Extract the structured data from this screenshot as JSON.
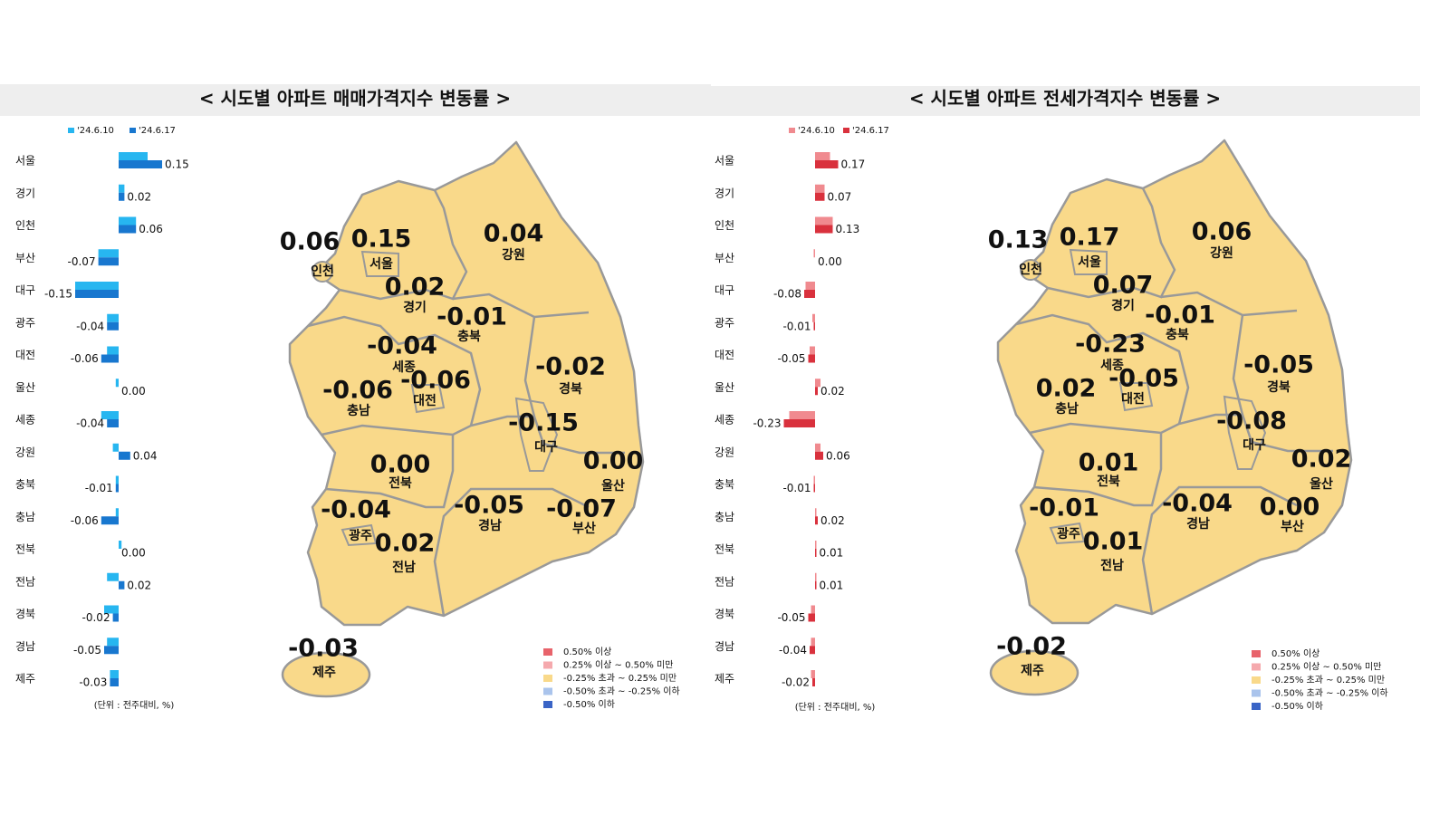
{
  "chart_data": [
    {
      "type": "hbar",
      "title": "< 시도별 아파트 매매가격지수 변동률 >",
      "note": "(단위 : 전주대비, %)",
      "categories": [
        "서울",
        "경기",
        "인천",
        "부산",
        "대구",
        "광주",
        "대전",
        "울산",
        "세종",
        "강원",
        "충북",
        "충남",
        "전북",
        "전남",
        "경북",
        "경남",
        "제주"
      ],
      "xlim": [
        -0.25,
        0.2
      ],
      "series": [
        {
          "name": "'24.6.10",
          "color": "#27b6f0",
          "values": [
            0.1,
            0.02,
            0.06,
            -0.07,
            -0.15,
            -0.04,
            -0.04,
            -0.01,
            -0.06,
            -0.02,
            -0.01,
            -0.01,
            0.01,
            -0.04,
            -0.05,
            -0.04,
            -0.03
          ]
        },
        {
          "name": "'24.6.17",
          "color": "#1877cf",
          "values": [
            0.15,
            0.02,
            0.06,
            -0.07,
            -0.15,
            -0.04,
            -0.06,
            0,
            -0.04,
            0.04,
            -0.01,
            -0.06,
            0,
            0.02,
            -0.02,
            -0.05,
            -0.03
          ],
          "value_labels": [
            "0.15",
            "0.02",
            "0.06",
            "-0.07",
            "-0.15",
            "-0.04",
            "-0.06",
            "0.00",
            "-0.04",
            "0.04",
            "-0.01",
            "-0.06",
            "0.00",
            "0.02",
            "-0.02",
            "-0.05",
            "-0.03"
          ]
        }
      ],
      "map_legend": [
        {
          "label": "0.50% 이상",
          "color": "#e8636b"
        },
        {
          "label": "0.25% 이상 ~ 0.50% 미만",
          "color": "#f5a9ad"
        },
        {
          "label": "-0.25% 초과 ~ 0.25% 미만",
          "color": "#f9d98a"
        },
        {
          "label": "-0.50% 초과 ~ -0.25% 이하",
          "color": "#aac4ec"
        },
        {
          "label": "-0.50% 이하",
          "color": "#3a64c6"
        }
      ]
    },
    {
      "type": "hbar",
      "title": "< 시도별 아파트 전세가격지수 변동률 >",
      "note": "(단위 : 전주대비, %)",
      "categories": [
        "서울",
        "경기",
        "인천",
        "부산",
        "대구",
        "광주",
        "대전",
        "울산",
        "세종",
        "강원",
        "충북",
        "충남",
        "전북",
        "전남",
        "경북",
        "경남",
        "제주"
      ],
      "xlim": [
        -0.4,
        0.3
      ],
      "series": [
        {
          "name": "'24.6.10",
          "color": "#f08a8f",
          "values": [
            0.11,
            0.07,
            0.13,
            -0.01,
            -0.07,
            -0.02,
            -0.04,
            0.04,
            -0.19,
            0.04,
            -0.01,
            0.01,
            0.01,
            0.01,
            -0.03,
            -0.03,
            -0.03
          ]
        },
        {
          "name": "'24.6.17",
          "color": "#d9313d",
          "values": [
            0.17,
            0.07,
            0.13,
            0,
            -0.08,
            -0.01,
            -0.05,
            0.02,
            -0.23,
            0.06,
            -0.01,
            0.02,
            0.01,
            0.01,
            -0.05,
            -0.04,
            -0.02
          ],
          "value_labels": [
            "0.17",
            "0.07",
            "0.13",
            "0.00",
            "-0.08",
            "-0.01",
            "-0.05",
            "0.02",
            "-0.23",
            "0.06",
            "-0.01",
            "0.02",
            "0.01",
            "0.01",
            "-0.05",
            "-0.04",
            "-0.02"
          ]
        }
      ],
      "map_legend": [
        {
          "label": "0.50% 이상",
          "color": "#e8636b"
        },
        {
          "label": "0.25% 이상 ~ 0.50% 미만",
          "color": "#f5a9ad"
        },
        {
          "label": "-0.25% 초과 ~ 0.25% 미만",
          "color": "#f9d98a"
        },
        {
          "label": "-0.50% 초과 ~ -0.25% 이하",
          "color": "#aac4ec"
        },
        {
          "label": "-0.50% 이하",
          "color": "#3a64c6"
        }
      ]
    }
  ]
}
